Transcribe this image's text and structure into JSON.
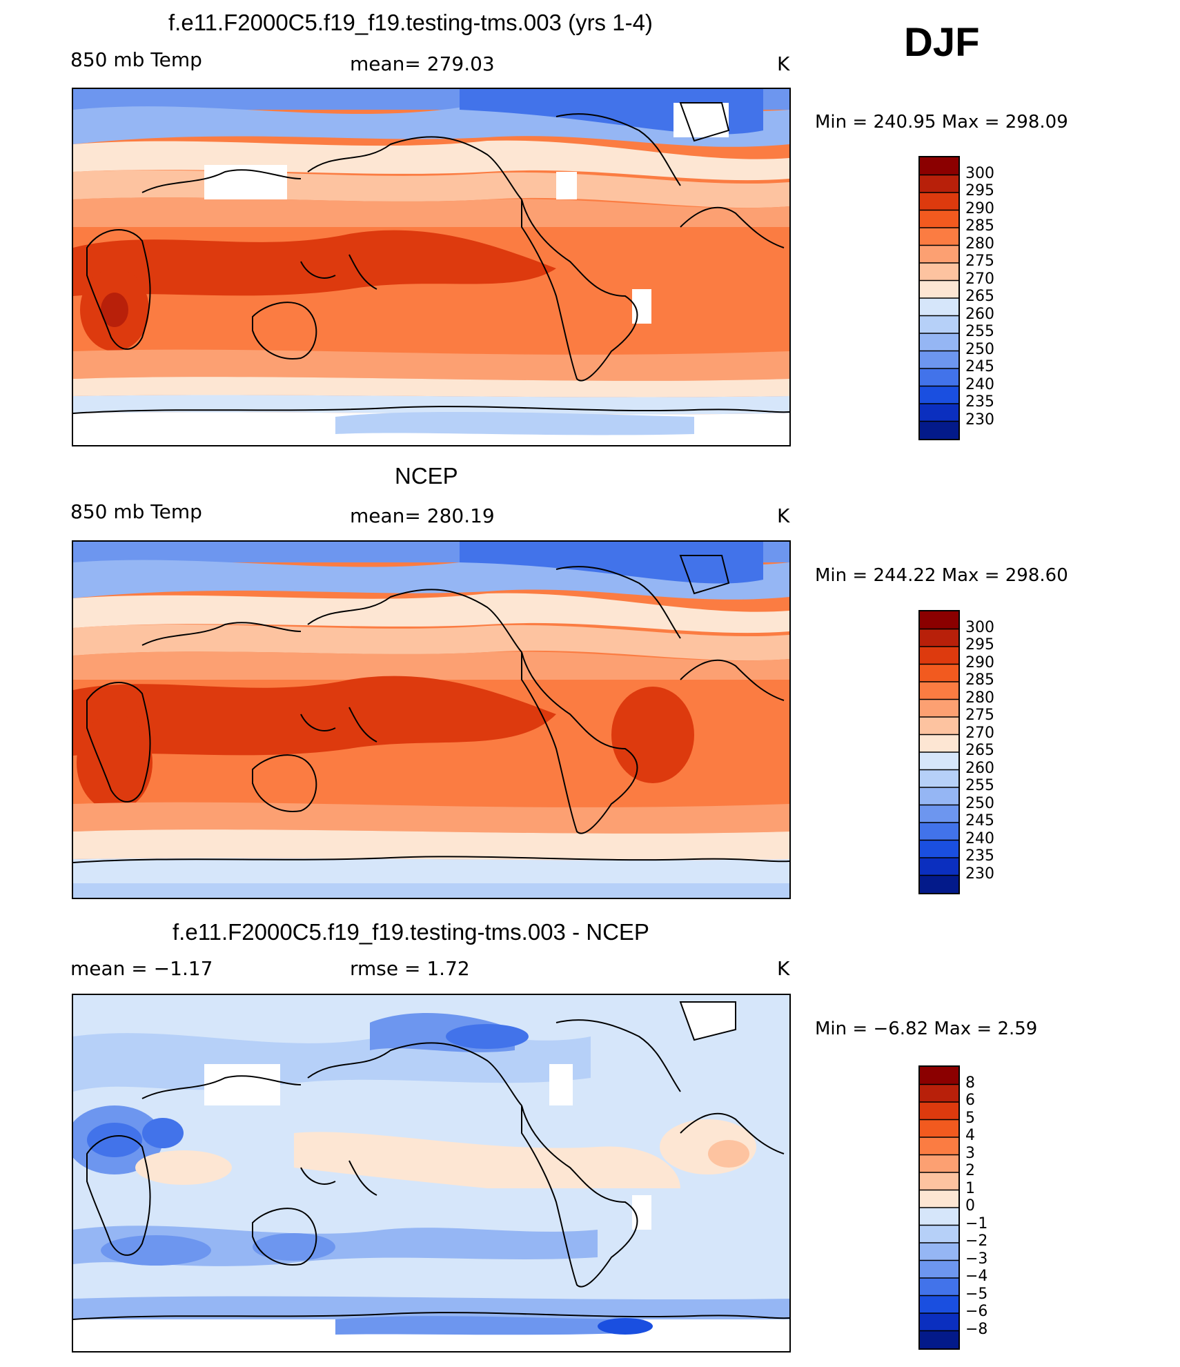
{
  "season": "DJF",
  "panels": [
    {
      "title": "f.e11.F2000C5.f19_f19.testing-tms.003 (yrs 1-4)",
      "left_label": "850 mb Temp",
      "center_label": "mean=  279.03",
      "units": "K",
      "minmax": "Min  =  240.95  Max  =  298.09",
      "type": "abs"
    },
    {
      "title": "NCEP",
      "left_label": "850 mb Temp",
      "center_label": "mean=  280.19",
      "units": "K",
      "minmax": "Min  =  244.22  Max  =  298.60",
      "type": "abs"
    },
    {
      "title": "f.e11.F2000C5.f19_f19.testing-tms.003 - NCEP",
      "left_label": "mean  =     −1.17",
      "center_label": "rmse  =     1.72",
      "units": "K",
      "minmax": "Min  =    −6.82  Max  =     2.59",
      "type": "diff"
    }
  ],
  "colorbar_abs": {
    "labels": [
      "300",
      "295",
      "290",
      "285",
      "280",
      "275",
      "270",
      "265",
      "260",
      "255",
      "250",
      "245",
      "240",
      "235",
      "230"
    ],
    "colors": [
      "#8b0000",
      "#b8200a",
      "#dd3a0e",
      "#f25a1f",
      "#fb7c42",
      "#fca072",
      "#fdc3a0",
      "#fde6d3",
      "#d6e6fa",
      "#b6d0f8",
      "#95b6f4",
      "#6d96ef",
      "#4273ea",
      "#1a4fe0",
      "#0b2fbf",
      "#031a8a"
    ]
  },
  "colorbar_diff": {
    "labels": [
      "8",
      "6",
      "5",
      "4",
      "3",
      "2",
      "1",
      "0",
      "−1",
      "−2",
      "−3",
      "−4",
      "−5",
      "−6",
      "−8"
    ],
    "colors": [
      "#8b0000",
      "#b8200a",
      "#dd3a0e",
      "#f25a1f",
      "#fb7c42",
      "#fca072",
      "#fdc3a0",
      "#fde6d3",
      "#d6e6fa",
      "#b6d0f8",
      "#95b6f4",
      "#6d96ef",
      "#4273ea",
      "#1a4fe0",
      "#0b2fbf",
      "#031a8a"
    ]
  }
}
